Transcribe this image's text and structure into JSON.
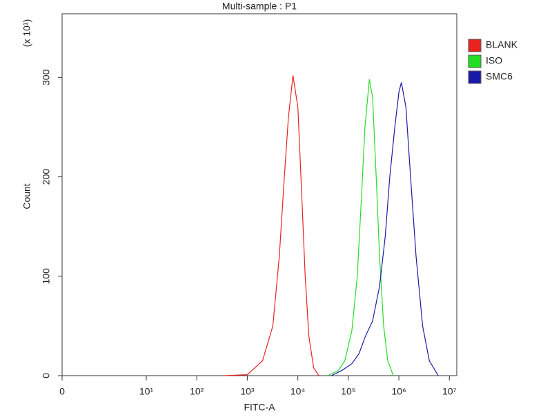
{
  "chart_data": {
    "type": "histogram-overlay",
    "title": "Multi-sample : P1",
    "x_label": "FITC-A",
    "y_label": "Count",
    "y_multiplier": "(x 10¹)",
    "xscale": "biexponential",
    "xlim": [
      0,
      14000000
    ],
    "xticks": [
      0,
      {
        "value": 10,
        "label": "10¹"
      },
      {
        "value": 100,
        "label": "10²"
      },
      {
        "value": 1000,
        "label": "10³"
      },
      {
        "value": 10000,
        "label": "10⁴"
      },
      {
        "value": 100000,
        "label": "10⁵"
      },
      {
        "value": 1000000,
        "label": "10⁶"
      },
      {
        "value": 10000000,
        "label": "10⁷"
      }
    ],
    "ylim": [
      0,
      364
    ],
    "yticks": [
      0,
      100,
      200,
      300
    ],
    "legend": "right",
    "series": [
      {
        "name": "BLANK",
        "color": "#e8221e",
        "x": [
          350,
          1000,
          2000,
          3200,
          4300,
          5400,
          6500,
          8000,
          10000,
          12000,
          14000,
          16500,
          20500,
          26000
        ],
        "values": [
          0,
          1,
          15,
          50,
          120,
          200,
          260,
          302,
          270,
          180,
          100,
          40,
          8,
          0
        ]
      },
      {
        "name": "ISO",
        "color": "#22dd22",
        "x": [
          39000,
          63000,
          85000,
          117000,
          150000,
          182000,
          213000,
          260000,
          302000,
          355000,
          415000,
          500000,
          603000,
          776000
        ],
        "values": [
          0,
          5,
          15,
          45,
          100,
          180,
          250,
          298,
          280,
          200,
          120,
          50,
          15,
          0
        ]
      },
      {
        "name": "SMC6",
        "color": "#1a1aa8",
        "x": [
          46000,
          73000,
          117000,
          162000,
          219000,
          302000,
          415000,
          537000,
          661000,
          832000,
          1000000,
          1120000,
          1380000,
          1700000,
          2190000,
          2950000,
          4000000,
          6000000
        ],
        "values": [
          0,
          5,
          12,
          22,
          40,
          55,
          90,
          140,
          200,
          250,
          285,
          295,
          270,
          200,
          120,
          50,
          15,
          0
        ]
      }
    ]
  }
}
